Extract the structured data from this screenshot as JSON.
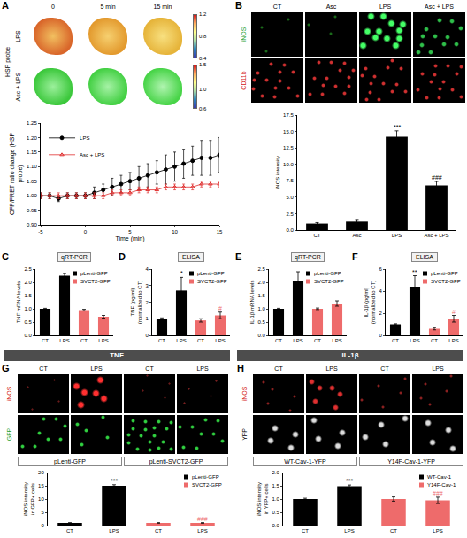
{
  "figure": {
    "panels": [
      {
        "letter": "A",
        "side_label": "HSP probe",
        "columns": [
          "0",
          "5 min",
          "15 min"
        ],
        "rows": [
          {
            "text": "LPS",
            "color": "#000000"
          },
          {
            "text": "Asc + LPS",
            "color": "#000000"
          }
        ],
        "colorbars": [
          {
            "range": [
              0.4,
              1.2
            ],
            "ticks": [
              1.2,
              0.8,
              0.4
            ]
          },
          {
            "range": [
              0.6,
              1.5
            ],
            "ticks": [
              1.5,
              {
                "value": 1,
                "label": "1.0"
              },
              0.6
            ]
          }
        ]
      },
      {
        "letter": "B",
        "columns": [
          "CT",
          "Asc",
          "LPS",
          "Asc + LPS"
        ],
        "rows": [
          {
            "text": "iNOS",
            "color": "#1e9e30"
          },
          {
            "text": "CD11b",
            "color": "#d42020"
          }
        ]
      },
      {
        "letter": "C",
        "assay": "qRT-PCR"
      },
      {
        "letter": "D",
        "assay": "ELISA"
      },
      {
        "letter": "E",
        "assay": "qRT-PCR"
      },
      {
        "letter": "F",
        "assay": "ELISA"
      },
      {
        "letter": "G",
        "columns": [
          "CT",
          "LPS",
          "CT",
          "LPS"
        ],
        "rows": [
          {
            "text": "iNOS",
            "color": "#d42020"
          },
          {
            "text": "GFP",
            "color": "#1e9e30"
          }
        ],
        "captions": [
          "pLenti-GFP",
          "pLenti-SVCT2-GFP"
        ]
      },
      {
        "letter": "H",
        "columns": [
          "CT",
          "LPS",
          "CT",
          "LPS"
        ],
        "rows": [
          {
            "text": "iNOS",
            "color": "#d42020"
          },
          {
            "text": "YFP",
            "color": "#000000"
          }
        ],
        "captions": [
          "WT-Cav-1-YFP",
          "Y14F-Cav-1-YFP"
        ]
      }
    ],
    "groups": [
      {
        "text": "TNF"
      },
      {
        "text": "IL-1β"
      }
    ]
  },
  "chart_data": [
    {
      "type": "line",
      "x_label": "Time (min)",
      "y_label": "CFP/FRET ratio change (HSP probe)",
      "x": [
        -5,
        -4,
        -3,
        -2,
        -1,
        0,
        1,
        2,
        3,
        4,
        5,
        6,
        7,
        8,
        9,
        10,
        11,
        12,
        13,
        14,
        15
      ],
      "xlim": [
        -5,
        15
      ],
      "xticks": [
        -5,
        0,
        5,
        10,
        15
      ],
      "ylim": [
        0.9,
        1.25
      ],
      "yticks": [
        {
          "value": 0.9,
          "label": "0.90"
        },
        {
          "value": 0.95,
          "label": "0.95"
        },
        {
          "value": 1,
          "label": "1.00"
        },
        {
          "value": 1.05,
          "label": "1.05"
        },
        {
          "value": 1.1,
          "label": "1.10"
        },
        {
          "value": 1.15,
          "label": "1.15"
        },
        {
          "value": 1.2,
          "label": "1.20"
        },
        {
          "value": 1.25,
          "label": "1.25"
        }
      ],
      "legend": "upper left",
      "series": [
        {
          "name": "LPS",
          "color": "#000000",
          "marker": "circle",
          "values": [
            1.0,
            1.0,
            0.99,
            1.0,
            1.0,
            1.0,
            1.01,
            1.02,
            1.03,
            1.04,
            1.05,
            1.06,
            1.07,
            1.08,
            1.09,
            1.1,
            1.11,
            1.12,
            1.13,
            1.13,
            1.14
          ],
          "error": [
            0.01,
            0.01,
            0.01,
            0.01,
            0.01,
            0.01,
            0.02,
            0.02,
            0.03,
            0.03,
            0.03,
            0.04,
            0.04,
            0.04,
            0.05,
            0.05,
            0.05,
            0.05,
            0.06,
            0.06,
            0.06
          ]
        },
        {
          "name": "Asc + LPS",
          "color": "#e03030",
          "marker": "triangle-up-open",
          "values": [
            1.0,
            1.0,
            1.0,
            1.0,
            1.0,
            1.0,
            1.0,
            1.0,
            1.01,
            1.01,
            1.01,
            1.02,
            1.02,
            1.02,
            1.03,
            1.03,
            1.03,
            1.03,
            1.04,
            1.04,
            1.04
          ],
          "error": [
            0.01,
            0.01,
            0.01,
            0.01,
            0.01,
            0.01,
            0.01,
            0.01,
            0.01,
            0.01,
            0.01,
            0.01,
            0.01,
            0.01,
            0.01,
            0.01,
            0.01,
            0.01,
            0.01,
            0.01,
            0.01
          ]
        }
      ]
    },
    {
      "type": "bar",
      "y_label": "iNOS intensity",
      "categories": [
        "CT",
        "Asc",
        "LPS",
        "Asc + LPS"
      ],
      "values": [
        1.0,
        1.3,
        14.2,
        6.8
      ],
      "error": [
        0.15,
        0.2,
        0.9,
        0.6
      ],
      "annotations": [
        null,
        null,
        "***",
        "###"
      ],
      "color": "#000000",
      "ylim": [
        0,
        17.5
      ],
      "yticks": [
        {
          "value": 0,
          "label": "0.0"
        },
        2.5,
        {
          "value": 5,
          "label": "5.0"
        },
        7.5,
        {
          "value": 10,
          "label": "10.0"
        },
        12.5,
        {
          "value": 15,
          "label": "15.0"
        },
        17.5
      ]
    },
    {
      "type": "bar",
      "y_label": "TNF mRNA levels",
      "categories": [
        "CT",
        "LPS",
        "CT",
        "LPS"
      ],
      "legend": "upper right",
      "ylim": [
        0,
        2.5
      ],
      "yticks": [
        {
          "value": 0,
          "label": "0.0"
        },
        0.5,
        {
          "value": 1,
          "label": "1.0"
        },
        1.5,
        {
          "value": 2,
          "label": "2.0"
        },
        2.5
      ],
      "series": [
        {
          "name": "pLenti-GFP",
          "color": "#000000",
          "values": [
            1.0,
            2.25,
            null,
            null
          ],
          "error": [
            0.02,
            0.08,
            null,
            null
          ]
        },
        {
          "name": "SVCT2-GFP",
          "color": "#ee6b6b",
          "values": [
            null,
            null,
            0.95,
            0.7
          ],
          "error": [
            null,
            null,
            0.03,
            0.05
          ]
        }
      ]
    },
    {
      "type": "bar",
      "y_label": "TNF (pg/ml) (normalized to CT)",
      "categories": [
        "CT",
        "LPS",
        "CT",
        "LPS"
      ],
      "legend": "upper right",
      "ylim": [
        0,
        4
      ],
      "yticks": [
        0,
        1,
        2,
        3,
        4
      ],
      "series": [
        {
          "name": "pLenti-GFP",
          "color": "#000000",
          "values": [
            1.0,
            2.7,
            null,
            null
          ],
          "error": [
            0.05,
            0.8,
            null,
            null
          ],
          "annotations": [
            null,
            "*",
            null,
            null
          ]
        },
        {
          "name": "SVCT2-GFP",
          "color": "#ee6b6b",
          "values": [
            null,
            null,
            0.9,
            1.2
          ],
          "error": [
            null,
            null,
            0.1,
            0.2
          ],
          "annotations": [
            null,
            null,
            null,
            "#"
          ]
        }
      ]
    },
    {
      "type": "bar",
      "y_label": "IL-1β mRNA levels",
      "categories": [
        "CT",
        "LPS",
        "CT",
        "LPS"
      ],
      "legend": "upper right",
      "ylim": [
        0,
        2.5
      ],
      "yticks": [
        {
          "value": 0,
          "label": "0.0"
        },
        0.5,
        {
          "value": 1,
          "label": "1.0"
        },
        1.5,
        {
          "value": 2,
          "label": "2.0"
        },
        2.5
      ],
      "series": [
        {
          "name": "pLenti-GFP",
          "color": "#000000",
          "values": [
            1.0,
            2.05,
            null,
            null
          ],
          "error": [
            0.02,
            0.35,
            null,
            null
          ]
        },
        {
          "name": "SVCT2-GFP",
          "color": "#ee6b6b",
          "values": [
            null,
            null,
            1.0,
            1.2
          ],
          "error": [
            null,
            null,
            0.03,
            0.1
          ]
        }
      ]
    },
    {
      "type": "bar",
      "y_label": "IL-1β (pg/ml) (normalized to CT)",
      "categories": [
        "CT",
        "LPS",
        "CT",
        "LPS"
      ],
      "legend": "upper right",
      "ylim": [
        0,
        6
      ],
      "yticks": [
        0,
        2,
        4,
        6
      ],
      "series": [
        {
          "name": "pLenti-GFP",
          "color": "#000000",
          "values": [
            1.0,
            4.4,
            null,
            null
          ],
          "error": [
            0.05,
            1.0,
            null,
            null
          ],
          "annotations": [
            null,
            "**",
            null,
            null
          ]
        },
        {
          "name": "SVCT2-GFP",
          "color": "#ee6b6b",
          "values": [
            null,
            null,
            0.6,
            1.5
          ],
          "error": [
            null,
            null,
            0.1,
            0.3
          ],
          "annotations": [
            null,
            null,
            null,
            "#"
          ]
        }
      ]
    },
    {
      "type": "bar",
      "y_label": "iNOS intensity in GFP+ cells",
      "categories": [
        "CT",
        "LPS",
        "CT",
        "LPS"
      ],
      "legend": "upper right",
      "ylim": [
        0,
        20
      ],
      "yticks": [
        0,
        5,
        10,
        15,
        20
      ],
      "series": [
        {
          "name": "pLenti-GFP",
          "color": "#000000",
          "values": [
            1.0,
            15.0,
            null,
            null
          ],
          "error": [
            0.1,
            0.4,
            null,
            null
          ],
          "annotations": [
            null,
            "***",
            null,
            null
          ]
        },
        {
          "name": "SVCT2-GFP",
          "color": "#ee6b6b",
          "values": [
            null,
            null,
            1.0,
            1.0
          ],
          "error": [
            null,
            null,
            0.1,
            0.1
          ],
          "annotations": [
            null,
            null,
            null,
            "###"
          ]
        }
      ]
    },
    {
      "type": "bar",
      "y_label": "iNOS intensity in YFP+ cells",
      "categories": [
        "CT",
        "LPS",
        "CT",
        "LPS"
      ],
      "legend": "upper right",
      "ylim": [
        0,
        2
      ],
      "yticks": [
        {
          "value": 0,
          "label": "0.0"
        },
        0.5,
        {
          "value": 1,
          "label": "1.0"
        },
        1.5,
        {
          "value": 2,
          "label": "2.0"
        }
      ],
      "series": [
        {
          "name": "WT-Cav-1",
          "color": "#000000",
          "values": [
            1.0,
            1.48,
            null,
            null
          ],
          "error": [
            0.03,
            0.05,
            null,
            null
          ],
          "annotations": [
            null,
            "***",
            null,
            null
          ]
        },
        {
          "name": "Y14F-Cav-1",
          "color": "#ee6b6b",
          "values": [
            null,
            null,
            1.0,
            0.95
          ],
          "error": [
            null,
            null,
            0.08,
            0.12
          ],
          "annotations": [
            null,
            null,
            null,
            "###"
          ]
        }
      ]
    }
  ]
}
